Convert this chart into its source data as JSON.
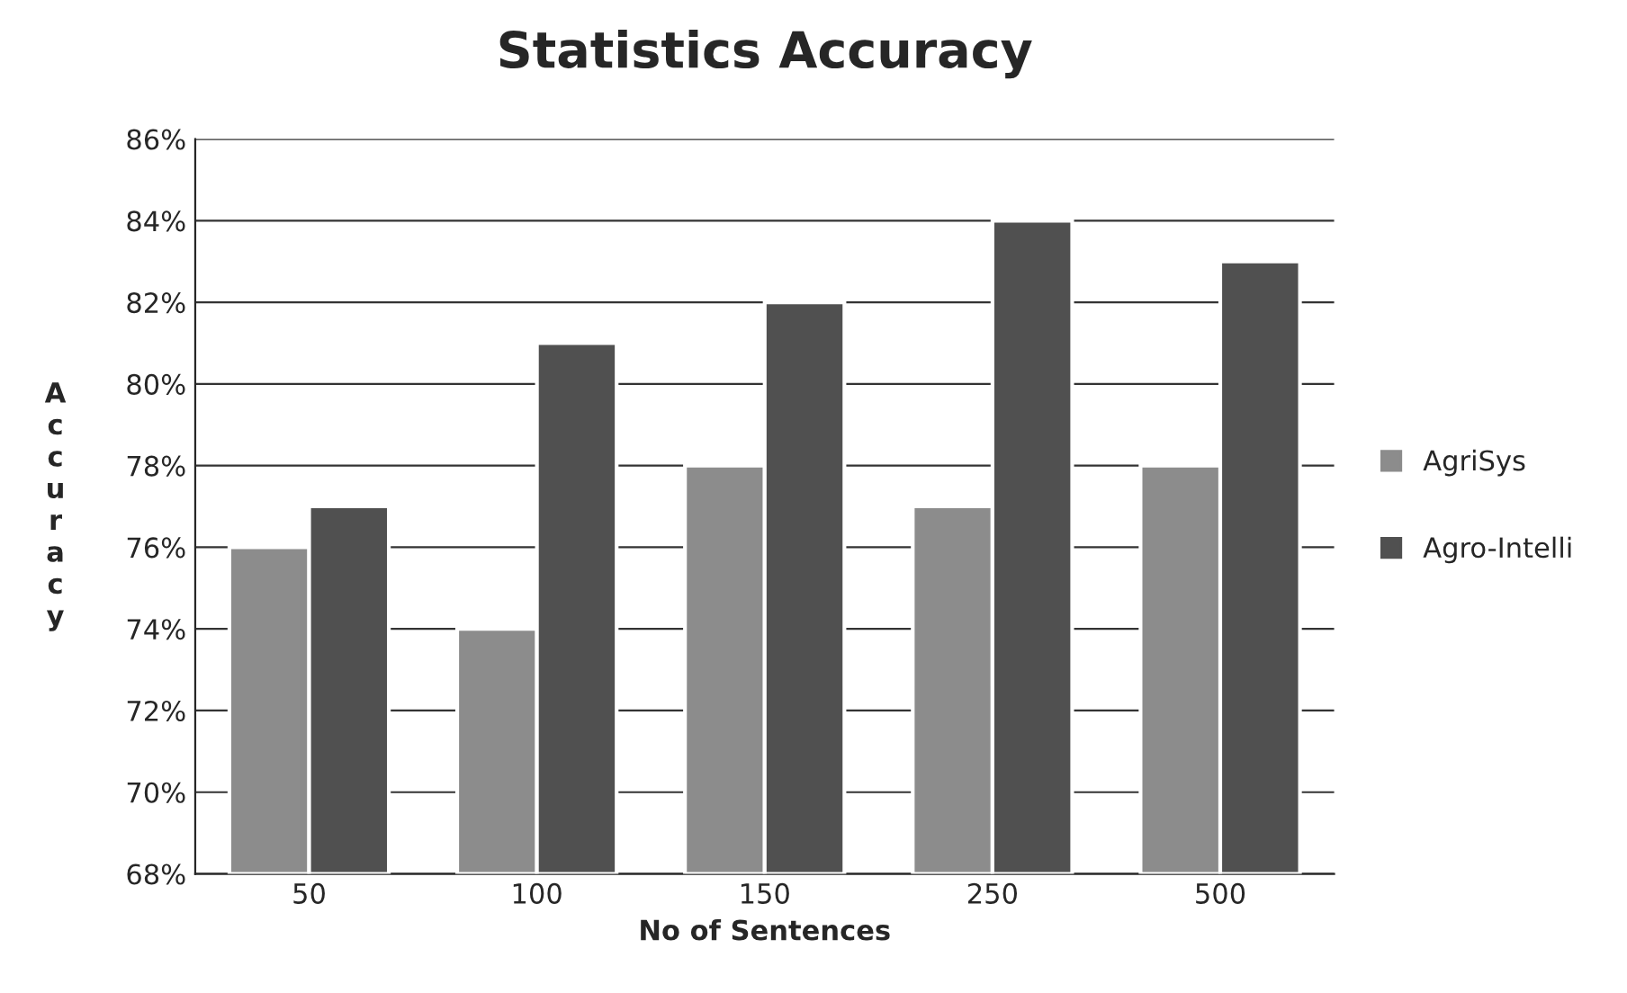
{
  "chart_data": {
    "type": "bar",
    "title": "Statistics Accuracy",
    "xlabel": "No of Sentences",
    "ylabel": "Accuracy",
    "categories": [
      "50",
      "100",
      "150",
      "250",
      "500"
    ],
    "series": [
      {
        "name": "AgriSys",
        "color": "#8c8c8c",
        "values": [
          76,
          74,
          78,
          77,
          78
        ]
      },
      {
        "name": "Agro-Intelli",
        "color": "#505050",
        "values": [
          77,
          81,
          82,
          84,
          83
        ]
      }
    ],
    "ylim": [
      68,
      86
    ],
    "yticks": [
      {
        "value": 68,
        "label": "68%"
      },
      {
        "value": 70,
        "label": "70%"
      },
      {
        "value": 72,
        "label": "72%"
      },
      {
        "value": 74,
        "label": "74%"
      },
      {
        "value": 76,
        "label": "76%"
      },
      {
        "value": 78,
        "label": "78%"
      },
      {
        "value": 80,
        "label": "80%"
      },
      {
        "value": 82,
        "label": "82%"
      },
      {
        "value": 84,
        "label": "84%"
      },
      {
        "value": 86,
        "label": "86%"
      }
    ],
    "grid": "y",
    "legend": "right"
  }
}
